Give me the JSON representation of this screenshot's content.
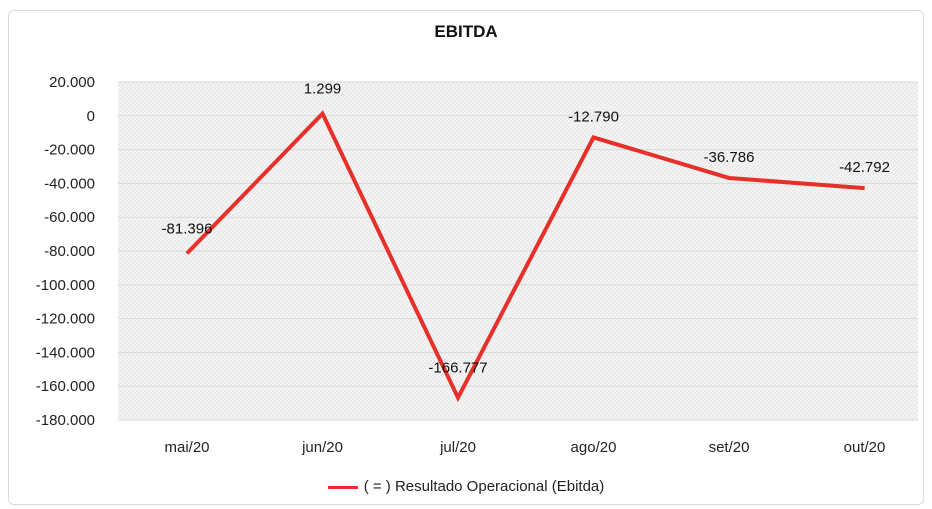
{
  "chart_data": {
    "type": "line",
    "title": "EBITDA",
    "categories": [
      "mai/20",
      "jun/20",
      "jul/20",
      "ago/20",
      "set/20",
      "out/20"
    ],
    "series": [
      {
        "name": "( = ) Resultado Operacional (Ebitda)",
        "values": [
          -81396,
          1299,
          -166777,
          -12790,
          -36786,
          -42792
        ],
        "labels": [
          "-81.396",
          "1.299",
          "-166.777",
          "-12.790",
          "-36.786",
          "-42.792"
        ],
        "color": "#e8302a"
      }
    ],
    "ylim": [
      -180000,
      20000
    ],
    "yticks": [
      20000,
      0,
      -20000,
      -40000,
      -60000,
      -80000,
      -100000,
      -120000,
      -140000,
      -160000,
      -180000
    ],
    "ytick_labels": [
      "20.000",
      "0",
      "-20.000",
      "-40.000",
      "-60.000",
      "-80.000",
      "-100.000",
      "-120.000",
      "-140.000",
      "-160.000",
      "-180.000"
    ],
    "xlabel": "",
    "ylabel": "",
    "grid": true,
    "legend_position": "bottom"
  }
}
